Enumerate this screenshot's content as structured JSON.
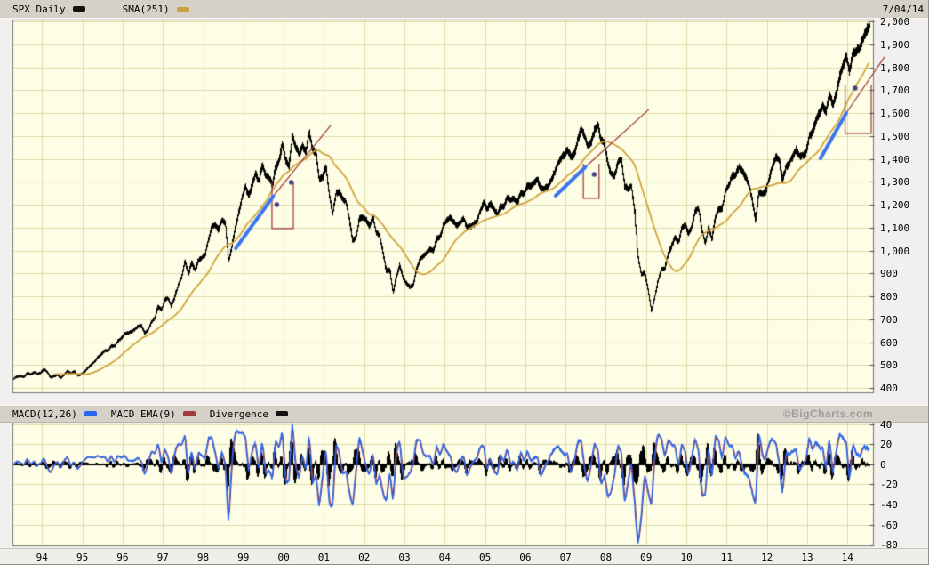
{
  "header": {
    "symbol_label": "SPX Daily",
    "sma_label": "SMA(251)",
    "date": "7/04/14"
  },
  "macd_header": {
    "macd_label": "MACD(12,26)",
    "ema_label": "MACD EMA(9)",
    "divergence_label": "Divergence",
    "watermark": "©BigCharts.com"
  },
  "colors": {
    "page_bg": "#F1F0EE",
    "bar_bg": "#D5D1C8",
    "plot_bg": "#FEFEE6",
    "grid": "#DBDBA8",
    "frame": "#777777",
    "tick": "#444444",
    "price": "#000000",
    "sma": "#D2A33C",
    "trend_blue": "#3B76F1",
    "annotation_red": "#993333",
    "dot_purple": "#4A3E85",
    "macd_blue": "#2B66EE",
    "macd_signal_red": "#A83A3A",
    "divergence": "#000000"
  },
  "chart_data": [
    {
      "type": "line",
      "title": "SPX Daily",
      "symbol": "SPX",
      "timeframe": "Daily",
      "overlay": "SMA(251)",
      "last_date": "7/04/14",
      "last_price": 1985,
      "ylim": [
        400,
        2000
      ],
      "y_ticks": [
        2000,
        1900,
        1800,
        1700,
        1600,
        1500,
        1400,
        1300,
        1200,
        1100,
        1000,
        900,
        800,
        700,
        600,
        500,
        400
      ],
      "y_tick_labels": [
        "2,000",
        "1,900",
        "1,800",
        "1,700",
        "1,600",
        "1,500",
        "1,400",
        "1,300",
        "1,200",
        "1,100",
        "1,000",
        "900",
        "800",
        "700",
        "600",
        "500",
        "400"
      ],
      "x_tick_years": [
        1994,
        1995,
        1996,
        1997,
        1998,
        1999,
        2000,
        2001,
        2002,
        2003,
        2004,
        2005,
        2006,
        2007,
        2008,
        2009,
        2010,
        2011,
        2012,
        2013,
        2014
      ],
      "x_tick_labels": [
        "94",
        "95",
        "96",
        "97",
        "98",
        "99",
        "00",
        "01",
        "02",
        "03",
        "04",
        "05",
        "06",
        "07",
        "08",
        "09",
        "10",
        "11",
        "12",
        "13",
        "14"
      ],
      "x_start": {
        "year": 1993,
        "month": 4
      },
      "monthly_closes": [
        440,
        450,
        451,
        448,
        464,
        459,
        468,
        462,
        466,
        482,
        467,
        446,
        451,
        457,
        444,
        458,
        475,
        462,
        472,
        454,
        459,
        470,
        487,
        501,
        514,
        533,
        545,
        562,
        562,
        584,
        582,
        605,
        616,
        636,
        640,
        646,
        654,
        669,
        671,
        640,
        652,
        687,
        705,
        757,
        741,
        786,
        791,
        757,
        801,
        848,
        885,
        954,
        899,
        947,
        915,
        955,
        970,
        980,
        1049,
        1102,
        1112,
        1091,
        1134,
        1121,
        957,
        1017,
        1099,
        1164,
        1229,
        1280,
        1238,
        1286,
        1335,
        1302,
        1373,
        1329,
        1320,
        1283,
        1363,
        1389,
        1469,
        1394,
        1366,
        1499,
        1452,
        1421,
        1455,
        1431,
        1518,
        1437,
        1429,
        1315,
        1320,
        1366,
        1240,
        1160,
        1249,
        1256,
        1224,
        1211,
        1134,
        1041,
        1060,
        1139,
        1148,
        1130,
        1107,
        1147,
        1077,
        1067,
        990,
        911,
        916,
        815,
        886,
        936,
        880,
        856,
        841,
        848,
        917,
        964,
        975,
        990,
        1008,
        996,
        1051,
        1058,
        1112,
        1131,
        1145,
        1126,
        1107,
        1121,
        1141,
        1102,
        1104,
        1114,
        1130,
        1174,
        1212,
        1181,
        1204,
        1181,
        1157,
        1192,
        1191,
        1234,
        1220,
        1229,
        1207,
        1249,
        1248,
        1280,
        1281,
        1295,
        1311,
        1270,
        1270,
        1277,
        1304,
        1336,
        1378,
        1401,
        1418,
        1438,
        1407,
        1421,
        1482,
        1531,
        1503,
        1455,
        1474,
        1527,
        1549,
        1481,
        1468,
        1379,
        1331,
        1323,
        1386,
        1400,
        1280,
        1267,
        1283,
        1166,
        969,
        896,
        903,
        826,
        735,
        798,
        873,
        919,
        919,
        987,
        1021,
        1057,
        1036,
        1096,
        1115,
        1074,
        1104,
        1169,
        1187,
        1089,
        1031,
        1102,
        1049,
        1141,
        1183,
        1181,
        1258,
        1286,
        1327,
        1326,
        1364,
        1345,
        1321,
        1292,
        1219,
        1131,
        1253,
        1247,
        1258,
        1312,
        1366,
        1408,
        1398,
        1310,
        1362,
        1379,
        1407,
        1441,
        1412,
        1416,
        1426,
        1498,
        1515,
        1569,
        1598,
        1631,
        1606,
        1686,
        1633,
        1682,
        1757,
        1806,
        1848,
        1783,
        1859,
        1872,
        1884,
        1924,
        1960,
        1985
      ],
      "annotations": {
        "blue_trendlines": [
          [
            1998.81,
            1009,
            1999.74,
            1236
          ],
          [
            2006.75,
            1239,
            2007.49,
            1364
          ],
          [
            2013.33,
            1402,
            2013.97,
            1600
          ]
        ],
        "red_trendlines": [
          [
            1999.74,
            1236,
            2001.17,
            1546
          ],
          [
            2007.49,
            1364,
            2009.07,
            1616
          ],
          [
            2013.97,
            1600,
            2014.92,
            1845
          ]
        ],
        "red_boxes": [
          [
            1999.71,
            2000.24,
            1096,
            1300
          ],
          [
            2007.44,
            2007.83,
            1228,
            1379
          ],
          [
            2013.94,
            2014.59,
            1511,
            1724
          ]
        ],
        "purple_dots": [
          [
            1999.83,
            1200
          ],
          [
            2000.19,
            1297
          ],
          [
            2007.71,
            1332
          ],
          [
            2014.19,
            1709
          ]
        ]
      }
    },
    {
      "type": "line",
      "title": "MACD(12,26) with MACD EMA(9) and Divergence histogram",
      "derived_from": "SPX daily closes",
      "params": {
        "fast": 12,
        "slow": 26,
        "signal": 9
      },
      "ylim": [
        -80,
        40
      ],
      "y_ticks": [
        40,
        20,
        0,
        -20,
        -40,
        -60,
        -80
      ],
      "y_tick_labels": [
        "40",
        "20",
        "0",
        "-20",
        "-40",
        "-60",
        "-80"
      ],
      "series_names": [
        "MACD(12,26)",
        "MACD EMA(9)",
        "Divergence"
      ],
      "approx_extremes": {
        "deepest_trough_year": 2008.9,
        "deepest_trough_value": -80,
        "typical_early_range": 5,
        "typical_late_range": 25
      }
    }
  ]
}
